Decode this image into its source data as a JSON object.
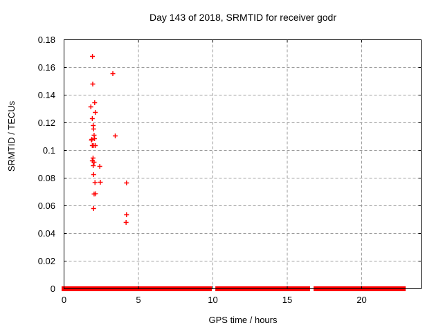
{
  "chart_data": {
    "type": "scatter",
    "title": "Day 143 of 2018, SRMTID for receiver godr",
    "xlabel": "GPS time / hours",
    "ylabel": "SRMTID / TECUs",
    "xlim": [
      0,
      24
    ],
    "ylim": [
      0,
      0.18
    ],
    "x_tick_values": [
      0,
      5,
      10,
      15,
      20
    ],
    "x_tick_labels": [
      "0",
      "5",
      "10",
      "15",
      "20"
    ],
    "y_tick_values": [
      0,
      0.02,
      0.04,
      0.06,
      0.08,
      0.1,
      0.12,
      0.14,
      0.16,
      0.18
    ],
    "y_tick_labels": [
      "0",
      "0.02",
      "0.04",
      "0.06",
      "0.08",
      "0.1",
      "0.12",
      "0.14",
      "0.16",
      "0.18"
    ],
    "grid": true,
    "legend": "none",
    "marker": "plus",
    "marker_color": "#ff0000",
    "grid_color": "#9a9a9a",
    "axis_color": "#000000",
    "series": [
      {
        "name": "SRMTID",
        "points": [
          [
            1.91,
            0.168
          ],
          [
            3.28,
            0.1555
          ],
          [
            1.93,
            0.148
          ],
          [
            2.06,
            0.1345
          ],
          [
            1.8,
            0.1315
          ],
          [
            2.1,
            0.1275
          ],
          [
            1.9,
            0.123
          ],
          [
            1.96,
            0.118
          ],
          [
            1.99,
            0.1155
          ],
          [
            2.02,
            0.111
          ],
          [
            3.44,
            0.1105
          ],
          [
            1.84,
            0.1075
          ],
          [
            1.87,
            0.108
          ],
          [
            2.05,
            0.1085
          ],
          [
            1.9,
            0.1035
          ],
          [
            2.0,
            0.1035
          ],
          [
            2.1,
            0.1035
          ],
          [
            1.95,
            0.0945
          ],
          [
            1.9,
            0.0925
          ],
          [
            2.02,
            0.0915
          ],
          [
            1.96,
            0.089
          ],
          [
            2.4,
            0.0885
          ],
          [
            1.99,
            0.0825
          ],
          [
            2.08,
            0.0768
          ],
          [
            2.44,
            0.077
          ],
          [
            4.2,
            0.0765
          ],
          [
            2.02,
            0.0685
          ],
          [
            2.12,
            0.0687
          ],
          [
            1.99,
            0.058
          ],
          [
            4.2,
            0.0535
          ],
          [
            4.17,
            0.048
          ]
        ]
      }
    ],
    "zero_band_note": "dense overlapping plus markers at y=0; segments given as [start_hour, end_hour]",
    "zero_band_segments": [
      [
        0.0,
        0.23
      ],
      [
        0.33,
        0.51
      ],
      [
        0.6,
        0.98
      ],
      [
        1.07,
        1.3
      ],
      [
        1.49,
        1.63
      ],
      [
        1.72,
        5.02
      ],
      [
        5.26,
        6.42
      ],
      [
        6.6,
        6.74
      ],
      [
        6.93,
        9.77
      ],
      [
        10.33,
        11.02
      ],
      [
        11.12,
        12.09
      ],
      [
        12.19,
        12.56
      ],
      [
        12.65,
        12.88
      ],
      [
        12.98,
        13.12
      ],
      [
        13.21,
        13.35
      ],
      [
        13.44,
        13.58
      ],
      [
        13.72,
        13.91
      ],
      [
        14.05,
        14.28
      ],
      [
        14.42,
        14.65
      ],
      [
        14.84,
        14.98
      ],
      [
        15.07,
        15.21
      ],
      [
        15.35,
        15.53
      ],
      [
        15.58,
        15.77
      ],
      [
        15.81,
        16.0
      ],
      [
        16.14,
        16.37
      ],
      [
        16.93,
        17.1
      ],
      [
        17.2,
        17.4
      ],
      [
        17.5,
        17.86
      ],
      [
        18.0,
        18.35
      ],
      [
        18.42,
        18.72
      ],
      [
        18.8,
        19.07
      ],
      [
        19.26,
        19.6
      ],
      [
        19.7,
        20.0
      ],
      [
        20.19,
        20.5
      ],
      [
        20.6,
        21.0
      ],
      [
        21.1,
        21.45
      ],
      [
        21.55,
        21.9
      ],
      [
        22.0,
        22.3
      ],
      [
        22.4,
        22.79
      ]
    ]
  }
}
